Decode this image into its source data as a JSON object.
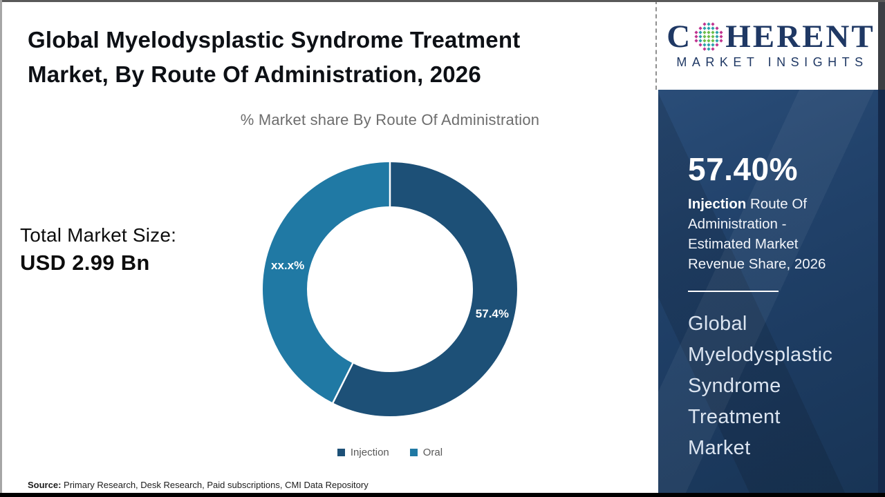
{
  "main": {
    "title": "Global Myelodysplastic Syndrome Treatment\nMarket, By Route Of Administration, 2026",
    "total_label": "Total Market Size:",
    "total_value": "USD 2.99 Bn",
    "source_label": "Source:",
    "source_text": " Primary Research, Desk Research, Paid subscriptions, CMI Data Repository"
  },
  "chart_data": {
    "type": "pie",
    "title": "% Market share By Route Of Administration",
    "categories": [
      "Injection",
      "Oral"
    ],
    "values": [
      57.4,
      42.6
    ],
    "labels": [
      "57.4%",
      "xx.x%"
    ],
    "colors": [
      "#1d5077",
      "#2079a4"
    ],
    "donut": true,
    "inner_radius_ratio": 0.65,
    "start_angle_deg": 0,
    "direction": "clockwise",
    "legend_position": "bottom",
    "label_color": "#ffffff",
    "separator_color": "#ffffff"
  },
  "sidebar": {
    "logo": {
      "brand_first_letter": "C",
      "brand_rest": "HERENT",
      "tagline": "MARKET INSIGHTS",
      "brand_color": "#1f3864",
      "globe_colors": {
        "outer": "#c0348f",
        "mid": "#2ba0ab",
        "core": "#6dbe4a"
      }
    },
    "share_value": "57.40%",
    "metric_label": "Injection",
    "metric_desc": "  Route Of Administration - Estimated Market Revenue Share, 2026",
    "market_name": "Global\nMyelodysplastic\nSyndrome\nTreatment\nMarket"
  }
}
